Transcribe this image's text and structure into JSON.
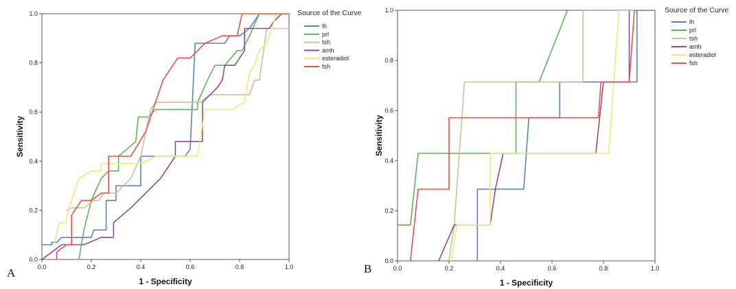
{
  "chart_data": [
    {
      "type": "line",
      "panel_label": "A",
      "xlabel": "1 - Specificity",
      "ylabel": "Sensitivity",
      "xlim": [
        0,
        1
      ],
      "ylim": [
        0,
        1
      ],
      "ticks": [
        "0.0",
        "0.2",
        "0.4",
        "0.6",
        "0.8",
        "1.0"
      ],
      "legend_title": "Source of the Curve",
      "legend_position": "right",
      "series": [
        {
          "name": "lh",
          "color": "#5b7fc4",
          "points": [
            [
              0,
              0.06
            ],
            [
              0.04,
              0.06
            ],
            [
              0.04,
              0.07
            ],
            [
              0.06,
              0.07
            ],
            [
              0.08,
              0.09
            ],
            [
              0.16,
              0.09
            ],
            [
              0.2,
              0.09
            ],
            [
              0.21,
              0.12
            ],
            [
              0.26,
              0.12
            ],
            [
              0.26,
              0.24
            ],
            [
              0.3,
              0.24
            ],
            [
              0.3,
              0.3
            ],
            [
              0.4,
              0.3
            ],
            [
              0.4,
              0.42
            ],
            [
              0.46,
              0.42
            ],
            [
              0.58,
              0.42
            ],
            [
              0.6,
              0.45
            ],
            [
              0.62,
              0.88
            ],
            [
              0.74,
              0.88
            ],
            [
              0.76,
              0.91
            ],
            [
              0.8,
              0.91
            ],
            [
              0.84,
              0.94
            ],
            [
              0.86,
              0.97
            ],
            [
              0.88,
              1.0
            ],
            [
              1.0,
              1.0
            ]
          ]
        },
        {
          "name": "prl",
          "color": "#5ab55a",
          "points": [
            [
              0.15,
              0
            ],
            [
              0.17,
              0.12
            ],
            [
              0.2,
              0.24
            ],
            [
              0.24,
              0.33
            ],
            [
              0.27,
              0.36
            ],
            [
              0.31,
              0.36
            ],
            [
              0.31,
              0.42
            ],
            [
              0.38,
              0.48
            ],
            [
              0.39,
              0.58
            ],
            [
              0.43,
              0.58
            ],
            [
              0.46,
              0.61
            ],
            [
              0.52,
              0.61
            ],
            [
              0.63,
              0.61
            ],
            [
              0.63,
              0.64
            ],
            [
              0.67,
              0.73
            ],
            [
              0.7,
              0.79
            ],
            [
              0.74,
              0.79
            ],
            [
              0.79,
              0.85
            ],
            [
              0.81,
              0.85
            ],
            [
              0.84,
              0.91
            ],
            [
              0.88,
              1.0
            ],
            [
              1.0,
              1.0
            ]
          ]
        },
        {
          "name": "tsh",
          "color": "#c6c29a",
          "points": [
            [
              0.1,
              0.2
            ],
            [
              0.12,
              0.21
            ],
            [
              0.17,
              0.21
            ],
            [
              0.21,
              0.24
            ],
            [
              0.23,
              0.24
            ],
            [
              0.25,
              0.27
            ],
            [
              0.3,
              0.27
            ],
            [
              0.33,
              0.3
            ],
            [
              0.36,
              0.33
            ],
            [
              0.4,
              0.42
            ],
            [
              0.44,
              0.61
            ],
            [
              0.46,
              0.64
            ],
            [
              0.55,
              0.64
            ],
            [
              0.64,
              0.64
            ],
            [
              0.68,
              0.67
            ],
            [
              0.84,
              0.67
            ],
            [
              0.86,
              0.73
            ],
            [
              0.88,
              0.73
            ],
            [
              0.91,
              0.94
            ],
            [
              0.92,
              0.94
            ],
            [
              1.0,
              0.94
            ]
          ]
        },
        {
          "name": "amh",
          "color": "#8a4a9a",
          "points": [
            [
              0,
              0
            ],
            [
              0.04,
              0.03
            ],
            [
              0.08,
              0.06
            ],
            [
              0.17,
              0.06
            ],
            [
              0.24,
              0.09
            ],
            [
              0.29,
              0.09
            ],
            [
              0.29,
              0.15
            ],
            [
              0.36,
              0.21
            ],
            [
              0.42,
              0.27
            ],
            [
              0.48,
              0.33
            ],
            [
              0.54,
              0.42
            ],
            [
              0.54,
              0.48
            ],
            [
              0.6,
              0.48
            ],
            [
              0.65,
              0.48
            ],
            [
              0.65,
              0.64
            ],
            [
              0.71,
              0.7
            ],
            [
              0.73,
              0.73
            ],
            [
              0.74,
              0.79
            ],
            [
              0.78,
              0.79
            ],
            [
              0.82,
              0.85
            ],
            [
              0.82,
              0.94
            ],
            [
              0.92,
              0.94
            ],
            [
              0.94,
              0.97
            ],
            [
              0.97,
              1.0
            ],
            [
              1.0,
              1.0
            ]
          ]
        },
        {
          "name": "esteradiol",
          "color": "#f0e878",
          "points": [
            [
              0.05,
              0.06
            ],
            [
              0.07,
              0.15
            ],
            [
              0.1,
              0.15
            ],
            [
              0.1,
              0.18
            ],
            [
              0.12,
              0.24
            ],
            [
              0.15,
              0.33
            ],
            [
              0.2,
              0.36
            ],
            [
              0.24,
              0.36
            ],
            [
              0.24,
              0.39
            ],
            [
              0.28,
              0.39
            ],
            [
              0.33,
              0.39
            ],
            [
              0.4,
              0.39
            ],
            [
              0.46,
              0.42
            ],
            [
              0.52,
              0.42
            ],
            [
              0.63,
              0.42
            ],
            [
              0.66,
              0.61
            ],
            [
              0.7,
              0.61
            ],
            [
              0.77,
              0.61
            ],
            [
              0.82,
              0.64
            ],
            [
              0.84,
              0.76
            ],
            [
              0.86,
              0.79
            ],
            [
              0.88,
              0.85
            ],
            [
              0.91,
              0.88
            ],
            [
              0.93,
              0.94
            ],
            [
              0.95,
              1.0
            ],
            [
              1.0,
              1.0
            ]
          ]
        },
        {
          "name": "fsh",
          "color": "#e8504a",
          "points": [
            [
              0.06,
              0
            ],
            [
              0.06,
              0.03
            ],
            [
              0.1,
              0.06
            ],
            [
              0.12,
              0.06
            ],
            [
              0.12,
              0.18
            ],
            [
              0.16,
              0.24
            ],
            [
              0.2,
              0.24
            ],
            [
              0.24,
              0.27
            ],
            [
              0.27,
              0.27
            ],
            [
              0.27,
              0.42
            ],
            [
              0.31,
              0.42
            ],
            [
              0.36,
              0.42
            ],
            [
              0.42,
              0.52
            ],
            [
              0.49,
              0.73
            ],
            [
              0.55,
              0.82
            ],
            [
              0.6,
              0.82
            ],
            [
              0.63,
              0.85
            ],
            [
              0.66,
              0.88
            ],
            [
              0.73,
              0.91
            ],
            [
              0.79,
              0.91
            ],
            [
              0.81,
              1.0
            ],
            [
              1.0,
              1.0
            ]
          ]
        }
      ]
    },
    {
      "type": "line",
      "panel_label": "B",
      "xlabel": "1 - Specificity",
      "ylabel": "Sensitivity",
      "xlim": [
        0,
        1
      ],
      "ylim": [
        0,
        1
      ],
      "ticks": [
        "0.0",
        "0.2",
        "0.4",
        "0.6",
        "0.8",
        "1.0"
      ],
      "legend_title": "Source of the Curve",
      "legend_position": "right",
      "series": [
        {
          "name": "lh",
          "color": "#5b7fc4",
          "points": [
            [
              0.31,
              0
            ],
            [
              0.31,
              0.286
            ],
            [
              0.49,
              0.286
            ],
            [
              0.51,
              0.571
            ],
            [
              0.6,
              0.571
            ],
            [
              0.63,
              0.571
            ],
            [
              0.63,
              0.714
            ],
            [
              0.79,
              0.714
            ],
            [
              0.79,
              0.714
            ],
            [
              0.93,
              0.714
            ],
            [
              0.93,
              1.0
            ],
            [
              1.0,
              1.0
            ]
          ]
        },
        {
          "name": "prl",
          "color": "#5ab55a",
          "points": [
            [
              0,
              0.143
            ],
            [
              0.05,
              0.143
            ],
            [
              0.08,
              0.429
            ],
            [
              0.46,
              0.429
            ],
            [
              0.46,
              0.714
            ],
            [
              0.55,
              0.714
            ],
            [
              0.66,
              1.0
            ],
            [
              1.0,
              1.0
            ]
          ]
        },
        {
          "name": "tsh",
          "color": "#c6c29a",
          "points": [
            [
              0.2,
              0
            ],
            [
              0.22,
              0.143
            ],
            [
              0.26,
              0.714
            ],
            [
              0.72,
              0.714
            ],
            [
              0.72,
              1.0
            ],
            [
              1.0,
              1.0
            ]
          ]
        },
        {
          "name": "amh",
          "color": "#8a4a9a",
          "points": [
            [
              0.16,
              0
            ],
            [
              0.22,
              0.143
            ],
            [
              0.36,
              0.143
            ],
            [
              0.38,
              0.286
            ],
            [
              0.41,
              0.429
            ],
            [
              0.77,
              0.429
            ],
            [
              0.8,
              0.714
            ],
            [
              0.9,
              0.714
            ],
            [
              0.9,
              1.0
            ],
            [
              1.0,
              1.0
            ]
          ]
        },
        {
          "name": "esteradiol",
          "color": "#f0e878",
          "points": [
            [
              0.21,
              0
            ],
            [
              0.23,
              0.143
            ],
            [
              0.36,
              0.143
            ],
            [
              0.36,
              0.429
            ],
            [
              0.82,
              0.429
            ],
            [
              0.84,
              0.714
            ],
            [
              0.86,
              1.0
            ],
            [
              1.0,
              1.0
            ]
          ]
        },
        {
          "name": "fsh",
          "color": "#e8504a",
          "points": [
            [
              0.05,
              0
            ],
            [
              0.08,
              0.286
            ],
            [
              0.2,
              0.286
            ],
            [
              0.2,
              0.571
            ],
            [
              0.78,
              0.571
            ],
            [
              0.79,
              0.714
            ],
            [
              0.9,
              0.714
            ],
            [
              0.92,
              1.0
            ],
            [
              1.0,
              1.0
            ]
          ]
        }
      ]
    }
  ]
}
